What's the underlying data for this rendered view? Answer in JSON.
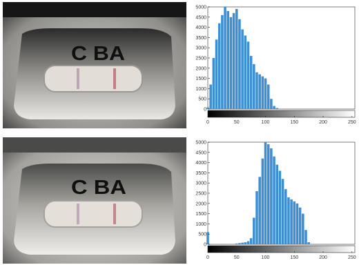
{
  "photos": [
    {
      "strip_label": "C BA",
      "colors": {
        "housing": "#c9c8c3",
        "window": "#e2ddd6",
        "c_line": "#b59aa9",
        "t_line": "#c0737a"
      }
    },
    {
      "strip_label": "C BA",
      "colors": {
        "housing": "#cfcfca",
        "window": "#e4dfd8",
        "c_line": "#b7a2b0",
        "t_line": "#c07c82"
      }
    }
  ],
  "chart_data": [
    {
      "type": "bar",
      "title": "",
      "xlabel": "",
      "ylabel": "",
      "xlim": [
        0,
        255
      ],
      "ylim": [
        0,
        5000
      ],
      "xticks": [
        0,
        50,
        100,
        150,
        200,
        250
      ],
      "yticks": [
        0,
        500,
        1000,
        1500,
        2000,
        2500,
        3000,
        3500,
        4000,
        4500,
        5000
      ],
      "colormap_bar": "grayscale-black-to-white",
      "bar_color": "#3d8fd1",
      "grid": false,
      "x": [
        0,
        5,
        10,
        15,
        20,
        25,
        30,
        35,
        40,
        45,
        50,
        55,
        60,
        65,
        70,
        75,
        80,
        85,
        90,
        95,
        100,
        105,
        110,
        115,
        120
      ],
      "values": [
        80,
        1200,
        2500,
        3400,
        4200,
        4600,
        5000,
        4800,
        4500,
        4700,
        4900,
        4400,
        3900,
        3600,
        3300,
        2600,
        2200,
        1800,
        1700,
        1600,
        1500,
        1200,
        500,
        150,
        50
      ]
    },
    {
      "type": "bar",
      "title": "",
      "xlabel": "",
      "ylabel": "",
      "xlim": [
        0,
        255
      ],
      "ylim": [
        0,
        5000
      ],
      "xticks": [
        0,
        50,
        100,
        150,
        200,
        250
      ],
      "yticks": [
        0,
        500,
        1000,
        1500,
        2000,
        2500,
        3000,
        3500,
        4000,
        4500,
        5000
      ],
      "colormap_bar": "grayscale-black-to-white",
      "bar_color": "#3d8fd1",
      "grid": false,
      "x": [
        0,
        5,
        10,
        15,
        20,
        25,
        30,
        35,
        40,
        45,
        50,
        55,
        60,
        65,
        70,
        75,
        80,
        85,
        90,
        95,
        100,
        105,
        110,
        115,
        120,
        125,
        130,
        135,
        140,
        145,
        150,
        155,
        160,
        165,
        170,
        175,
        180
      ],
      "values": [
        600,
        0,
        0,
        0,
        0,
        0,
        0,
        0,
        0,
        0,
        40,
        60,
        80,
        100,
        150,
        300,
        1300,
        2600,
        3300,
        4200,
        5000,
        4900,
        4700,
        4300,
        3900,
        3600,
        3200,
        2700,
        2300,
        2200,
        2100,
        2000,
        1800,
        1500,
        700,
        100,
        0
      ]
    }
  ]
}
